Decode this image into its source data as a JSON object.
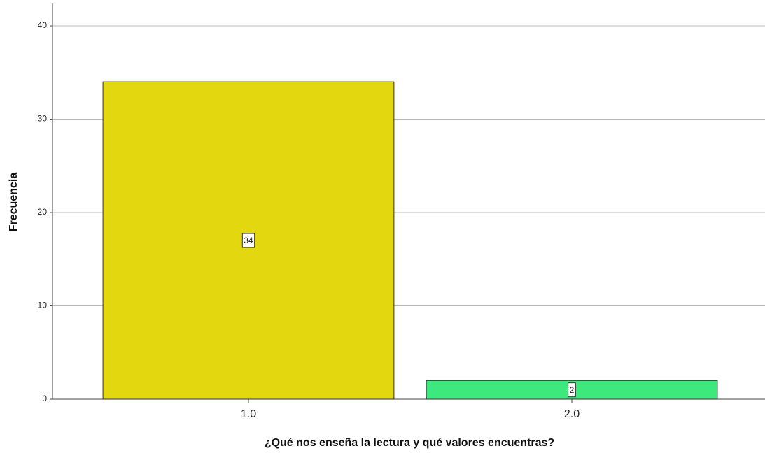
{
  "chart_data": {
    "type": "bar",
    "categories": [
      "1.0",
      "2.0"
    ],
    "values": [
      34,
      2
    ],
    "colors": [
      "#e3d70f",
      "#3de87c"
    ],
    "x_label": "¿Qué nos enseña la lectura y qué valores encuentras?",
    "y_label": "Frecuencia",
    "ylim": [
      0,
      42.4
    ],
    "yticks": [
      0,
      10,
      20,
      30,
      40
    ],
    "grid": true
  }
}
